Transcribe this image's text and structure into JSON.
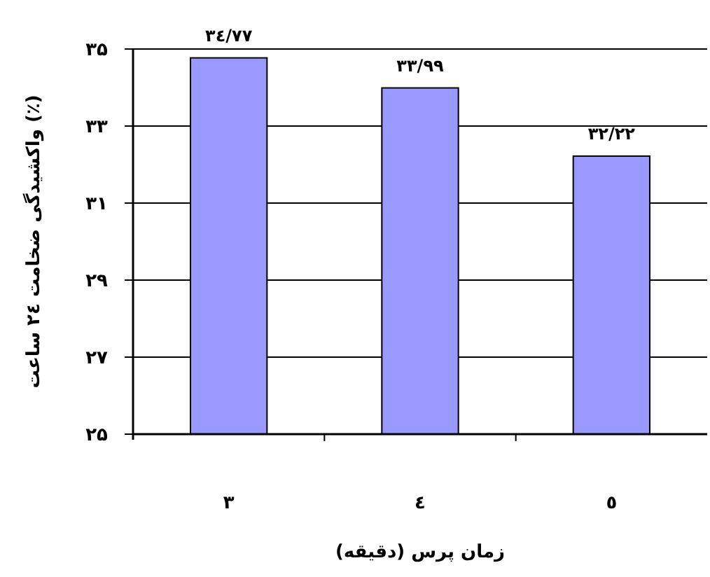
{
  "chart_data": {
    "type": "bar",
    "xlabel": "زمان پرس (دقیقه)",
    "ylabel": "واکشیدگی ضخامت ٢٤ ساعت (٪)",
    "categories": [
      "۳",
      "٤",
      "٥"
    ],
    "values": [
      34.77,
      33.99,
      32.22
    ],
    "value_labels": [
      "۳٤/۷۷",
      "۳۳/۹۹",
      "۳۲/۲۲"
    ],
    "color": "#9999ff",
    "ylim": [
      25,
      35
    ],
    "yticks": [
      {
        "value": 25,
        "label": "۲۵"
      },
      {
        "value": 27,
        "label": "۲۷"
      },
      {
        "value": 29,
        "label": "۲۹"
      },
      {
        "value": 31,
        "label": "۳۱"
      },
      {
        "value": 33,
        "label": "۳۳"
      },
      {
        "value": 35,
        "label": "۳۵"
      }
    ],
    "grid": "y"
  }
}
